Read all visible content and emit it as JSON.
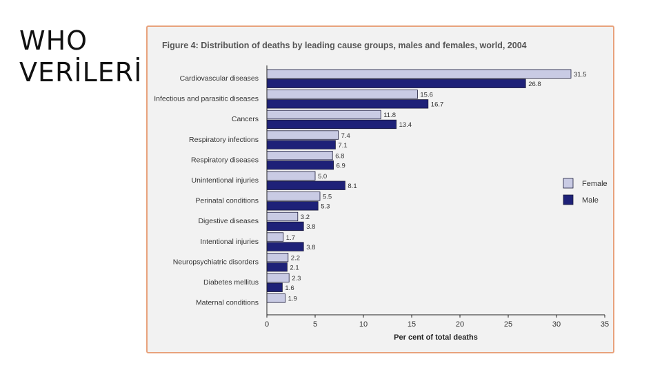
{
  "slide": {
    "title_line1": "WHO",
    "title_line2": "VERİLERİ"
  },
  "colors": {
    "female": "#c9cbe4",
    "male": "#1e2178",
    "frame": "#e8a27c",
    "panel": "#f2f2f2"
  },
  "chart_data": {
    "type": "bar",
    "orientation": "horizontal",
    "title": "Figure 4: Distribution of deaths by leading cause groups, males and females, world, 2004",
    "xlabel": "Per cent of total deaths",
    "ylabel": "",
    "xlim": [
      0,
      35
    ],
    "xticks": [
      0,
      5,
      10,
      15,
      20,
      25,
      30,
      35
    ],
    "grid": false,
    "legend_position": "right",
    "categories": [
      "Cardiovascular diseases",
      "Infectious and parasitic diseases",
      "Cancers",
      "Respiratory infections",
      "Respiratory diseases",
      "Unintentional injuries",
      "Perinatal conditions",
      "Digestive diseases",
      "Intentional injuries",
      "Neuropsychiatric disorders",
      "Diabetes mellitus",
      "Maternal conditions"
    ],
    "series": [
      {
        "name": "Female",
        "values": [
          31.5,
          15.6,
          11.8,
          7.4,
          6.8,
          5.0,
          5.5,
          3.2,
          1.7,
          2.2,
          2.3,
          1.9
        ]
      },
      {
        "name": "Male",
        "values": [
          26.8,
          16.7,
          13.4,
          7.1,
          6.9,
          8.1,
          5.3,
          3.8,
          3.8,
          2.1,
          1.6,
          null
        ]
      }
    ]
  }
}
